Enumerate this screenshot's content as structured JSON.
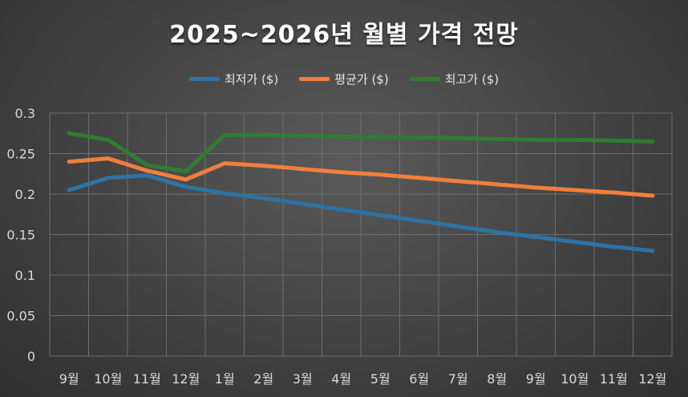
{
  "chart_data": {
    "type": "line",
    "title": "2025~2026년 월별 가격 전망",
    "xlabel": "",
    "ylabel": "",
    "categories": [
      "9월",
      "10월",
      "11월",
      "12월",
      "1월",
      "2월",
      "3월",
      "4월",
      "5월",
      "6월",
      "7월",
      "8월",
      "9월",
      "10월",
      "11월",
      "12월"
    ],
    "ylim": [
      0,
      0.3
    ],
    "yticks": [
      "0",
      "0.05",
      "0.1",
      "0.15",
      "0.2",
      "0.25",
      "0.3"
    ],
    "grid": true,
    "legend_position": "top",
    "series": [
      {
        "name": "최저가 ($)",
        "color": "#2e73a3",
        "values": [
          0.205,
          0.22,
          0.223,
          0.209,
          0.201,
          0.195,
          0.188,
          0.181,
          0.174,
          0.167,
          0.16,
          0.153,
          0.147,
          0.141,
          0.135,
          0.13
        ]
      },
      {
        "name": "평균가 ($)",
        "color": "#f07f3c",
        "values": [
          0.24,
          0.244,
          0.229,
          0.218,
          0.238,
          0.235,
          0.231,
          0.227,
          0.224,
          0.22,
          0.216,
          0.212,
          0.208,
          0.205,
          0.202,
          0.198
        ]
      },
      {
        "name": "최고가 ($)",
        "color": "#2e7d32",
        "values": [
          0.275,
          0.267,
          0.236,
          0.228,
          0.273,
          0.273,
          0.272,
          0.271,
          0.27,
          0.27,
          0.269,
          0.268,
          0.267,
          0.267,
          0.266,
          0.265
        ]
      }
    ]
  }
}
